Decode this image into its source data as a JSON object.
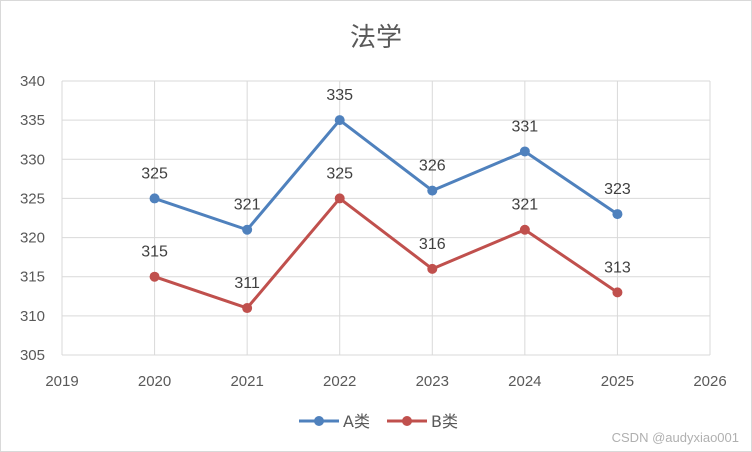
{
  "chart_data": {
    "type": "line",
    "title": "法学",
    "xlabel": "",
    "ylabel": "",
    "x": [
      2020,
      2021,
      2022,
      2023,
      2024,
      2025
    ],
    "x_ticks": [
      "2019",
      "2020",
      "2021",
      "2022",
      "2023",
      "2024",
      "2025",
      "2026"
    ],
    "xlim": [
      2019,
      2026
    ],
    "y_ticks": [
      "305",
      "310",
      "315",
      "320",
      "325",
      "330",
      "335",
      "340"
    ],
    "ylim": [
      305,
      340
    ],
    "grid": true,
    "legend_position": "bottom",
    "series": [
      {
        "name": "A类",
        "color": "#4f81bd",
        "values": [
          325,
          321,
          335,
          326,
          331,
          323
        ]
      },
      {
        "name": "B类",
        "color": "#c0504d",
        "values": [
          315,
          311,
          325,
          316,
          321,
          313
        ]
      }
    ]
  },
  "watermark": "CSDN @audyxiao001"
}
